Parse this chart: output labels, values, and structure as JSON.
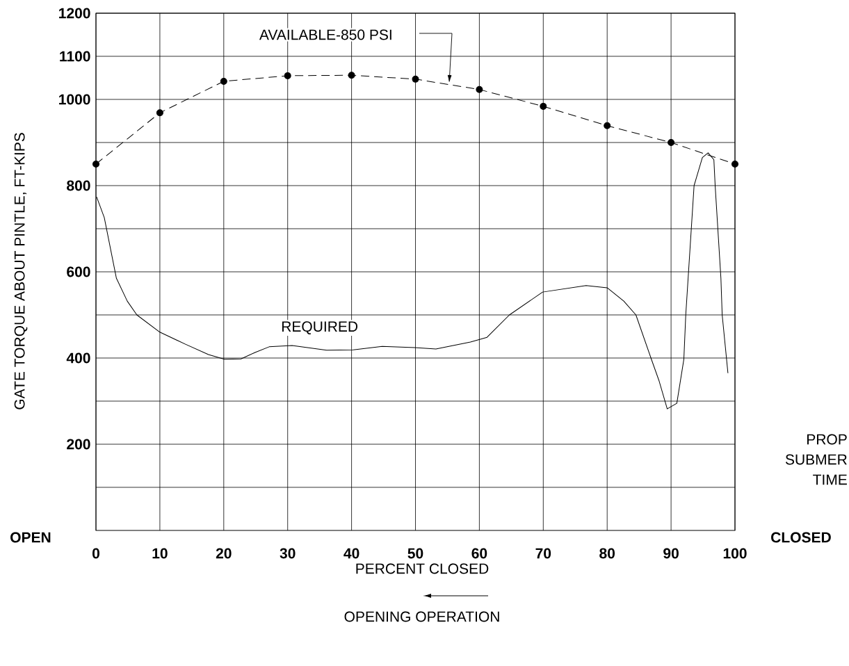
{
  "chart_data": {
    "type": "line",
    "xlabel": "PERCENT CLOSED",
    "ylabel": "GATE TORQUE ABOUT PINTLE, FT-KIPS",
    "annotations": [
      "OPEN",
      "CLOSED",
      "OPENING OPERATION",
      "PROP",
      "SUBMER",
      "TIME"
    ],
    "xlim": [
      0,
      100
    ],
    "ylim": [
      0,
      1200
    ],
    "xticks": [
      0,
      10,
      20,
      30,
      40,
      50,
      60,
      70,
      80,
      90,
      100
    ],
    "yticks": [
      {
        "value": 100,
        "label": null
      },
      200,
      {
        "value": 300,
        "label": null
      },
      400,
      {
        "value": 500,
        "label": null
      },
      600,
      {
        "value": 700,
        "label": null
      },
      800,
      {
        "value": 900,
        "label": null
      },
      1000,
      1100,
      1200
    ],
    "grid": true,
    "series": [
      {
        "name": "AVAILABLE-850 PSI",
        "color": "#000000",
        "marker": "circle",
        "line_style": "dashed",
        "x": [
          0,
          10,
          20,
          30,
          40,
          50,
          60,
          70,
          80,
          90,
          100
        ],
        "values": [
          850,
          969,
          1042,
          1055,
          1056,
          1047,
          1023,
          984,
          939,
          900,
          850
        ]
      },
      {
        "name": "REQUIRED",
        "color": "#000000",
        "marker": "none",
        "line_style": "solid",
        "x": [
          0.1,
          1.3,
          3.2,
          4.9,
          6.4,
          10.0,
          14.0,
          17.6,
          20.1,
          22.7,
          24.9,
          27.1,
          30.7,
          36.1,
          40.2,
          44.8,
          49.9,
          53.2,
          58.6,
          61.2,
          64.7,
          69.9,
          76.7,
          80.0,
          82.6,
          84.5,
          86.9,
          88.1,
          89.4,
          90.9,
          92.0,
          92.3,
          93.6,
          94.9,
          95.8,
          96.7,
          96.9,
          97.8,
          98.0,
          98.9
        ],
        "values": [
          774,
          726,
          585,
          532,
          500,
          460,
          432,
          408,
          397,
          398,
          413,
          426,
          429,
          418,
          419,
          427,
          424,
          421,
          437,
          448,
          500,
          553,
          568,
          563,
          532,
          500,
          398,
          348,
          282,
          295,
          397,
          500,
          800,
          865,
          876,
          860,
          800,
          585,
          500,
          365
        ]
      }
    ]
  }
}
